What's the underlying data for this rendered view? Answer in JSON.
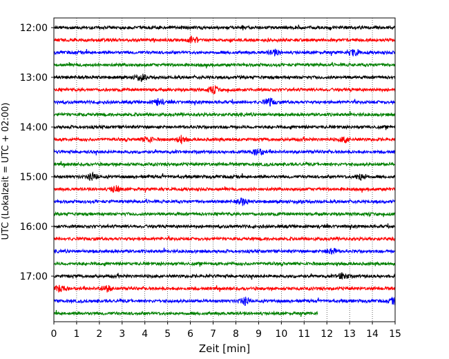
{
  "chart_data": {
    "type": "line",
    "title": "",
    "xlabel": "Zeit  [min]",
    "ylabel": "UTC (Lokalzeit = UTC + 02:00)",
    "xlim": [
      0,
      15
    ],
    "x_ticks": [
      0,
      1,
      2,
      3,
      4,
      5,
      6,
      7,
      8,
      9,
      10,
      11,
      12,
      13,
      14,
      15
    ],
    "y_ticks": [
      "12:00",
      "13:00",
      "14:00",
      "15:00",
      "16:00",
      "17:00"
    ],
    "y_tick_trace_index": [
      0,
      4,
      8,
      12,
      16,
      20
    ],
    "trace_interval_minutes": 15,
    "trace_start": "12:00",
    "trace_count": 24,
    "last_trace_end_minute": 11.6,
    "grid": "vertical dotted at each minute",
    "colors": [
      "#000000",
      "#ff0000",
      "#0000ff",
      "#008000"
    ],
    "burst_events": [
      {
        "trace": 1,
        "x": 6.1
      },
      {
        "trace": 2,
        "x": 9.7
      },
      {
        "trace": 2,
        "x": 13.2
      },
      {
        "trace": 4,
        "x": 3.8
      },
      {
        "trace": 5,
        "x": 7.0
      },
      {
        "trace": 6,
        "x": 4.6
      },
      {
        "trace": 6,
        "x": 9.5
      },
      {
        "trace": 9,
        "x": 4.1
      },
      {
        "trace": 9,
        "x": 5.6
      },
      {
        "trace": 9,
        "x": 12.8
      },
      {
        "trace": 10,
        "x": 9.0
      },
      {
        "trace": 12,
        "x": 1.7
      },
      {
        "trace": 12,
        "x": 13.5
      },
      {
        "trace": 13,
        "x": 2.7
      },
      {
        "trace": 14,
        "x": 8.3
      },
      {
        "trace": 18,
        "x": 12.2
      },
      {
        "trace": 20,
        "x": 12.7
      },
      {
        "trace": 21,
        "x": 0.3
      },
      {
        "trace": 21,
        "x": 2.3
      },
      {
        "trace": 22,
        "x": 8.4
      },
      {
        "trace": 22,
        "x": 15.0
      }
    ]
  }
}
